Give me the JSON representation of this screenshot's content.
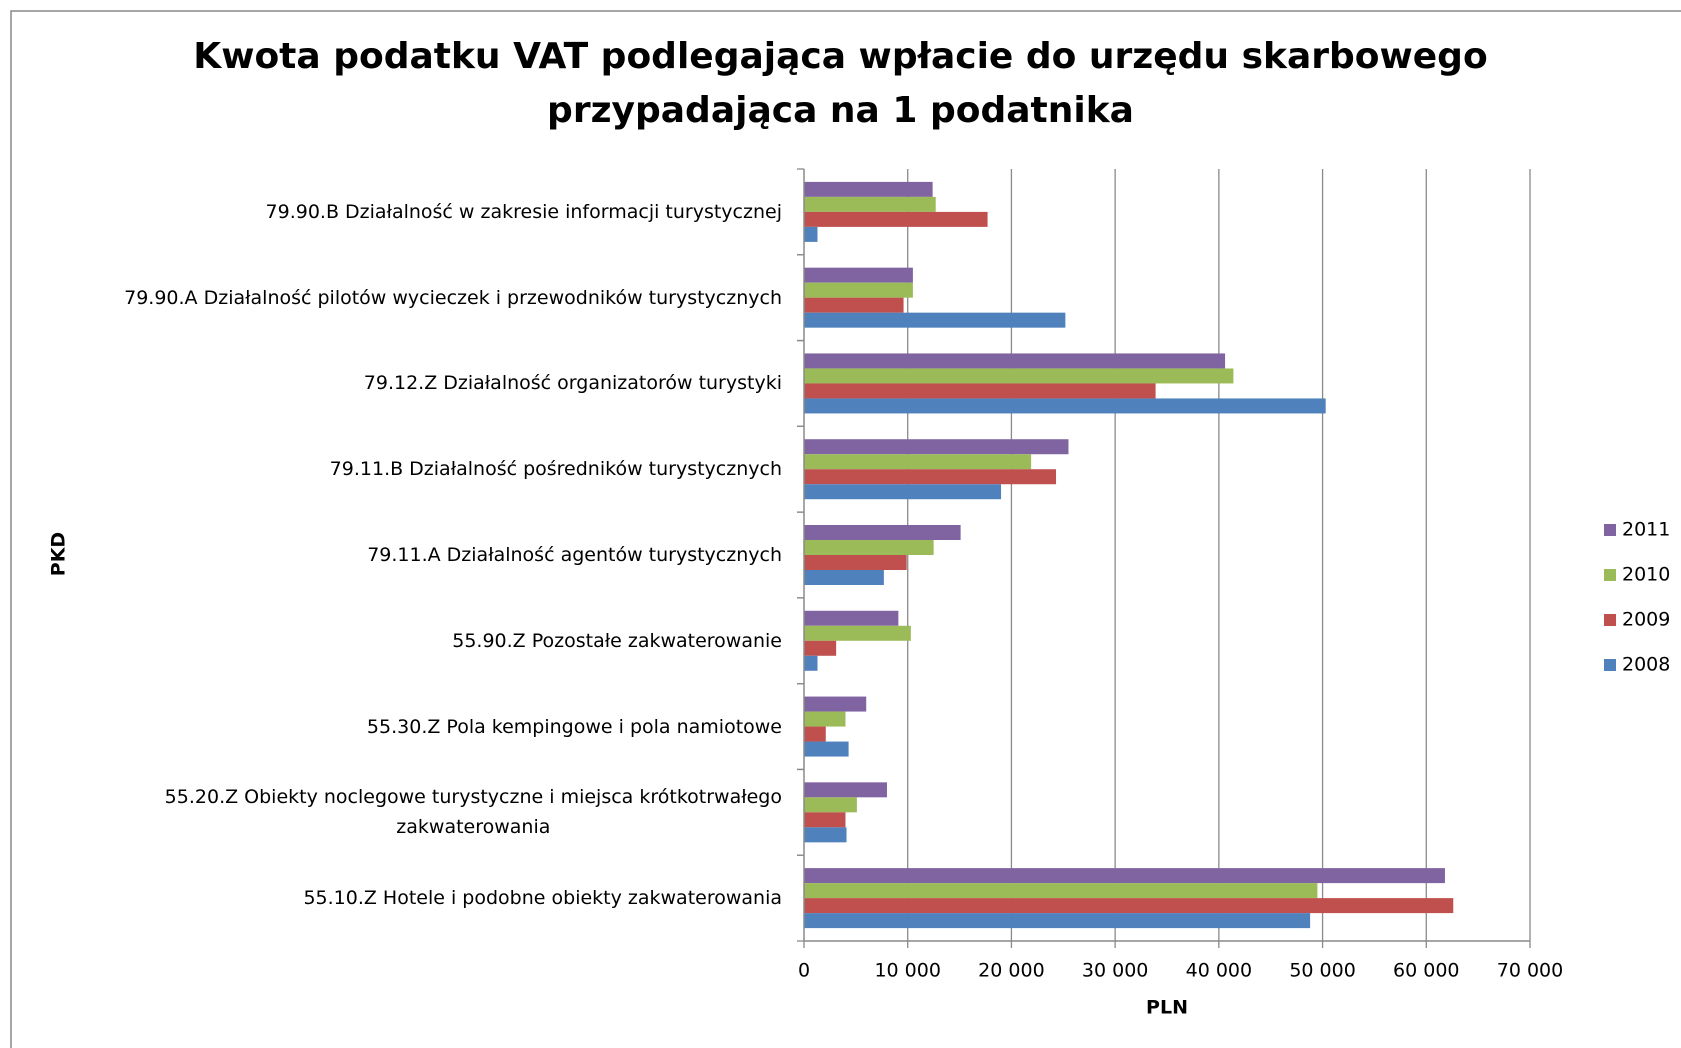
{
  "chart_data": {
    "type": "hbar",
    "title": "Kwota podatku VAT podlegająca wpłacie do urzędu skarbowego\nprzypadająca na 1 podatnika",
    "x_label": "PLN",
    "y_label": "PKD",
    "categories": [
      "79.90.B Działalność w zakresie informacji turystycznej",
      "79.90.A Działalność pilotów wycieczek i przewodników turystycznych",
      "79.12.Z Działalność organizatorów turystyki",
      "79.11.B Działalność pośredników turystycznych",
      "79.11.A Działalność agentów turystycznych",
      "55.90.Z Pozostałe zakwaterowanie",
      "55.30.Z Pola kempingowe i pola namiotowe",
      "55.20.Z Obiekty noclegowe turystyczne i miejsca krótkotrwałego\nzakwaterowania",
      "55.10.Z Hotele i podobne obiekty zakwaterowania"
    ],
    "series": [
      {
        "name": "2011",
        "color": "#8064a2",
        "values": [
          12400,
          10500,
          40600,
          25500,
          15100,
          9100,
          6000,
          8000,
          61800
        ]
      },
      {
        "name": "2010",
        "color": "#9bbb59",
        "values": [
          12700,
          10500,
          41400,
          21900,
          12500,
          10300,
          4000,
          5100,
          49500
        ]
      },
      {
        "name": "2009",
        "color": "#c0504d",
        "values": [
          17700,
          9600,
          33900,
          24300,
          9900,
          3100,
          2100,
          4000,
          62600
        ]
      },
      {
        "name": "2008",
        "color": "#4f81bd",
        "values": [
          1300,
          25200,
          50300,
          19000,
          7700,
          1300,
          4300,
          4100,
          48800
        ]
      }
    ],
    "xlim": [
      0,
      70000
    ],
    "xticks": [
      0,
      {
        "value": 10000,
        "label": "10 000"
      },
      {
        "value": 20000,
        "label": "20 000"
      },
      {
        "value": 30000,
        "label": "30 000"
      },
      {
        "value": 40000,
        "label": "40 000"
      },
      {
        "value": 50000,
        "label": "50 000"
      },
      {
        "value": 60000,
        "label": "60 000"
      },
      {
        "value": 70000,
        "label": "70 000"
      }
    ],
    "grid": true,
    "legend": "right"
  }
}
